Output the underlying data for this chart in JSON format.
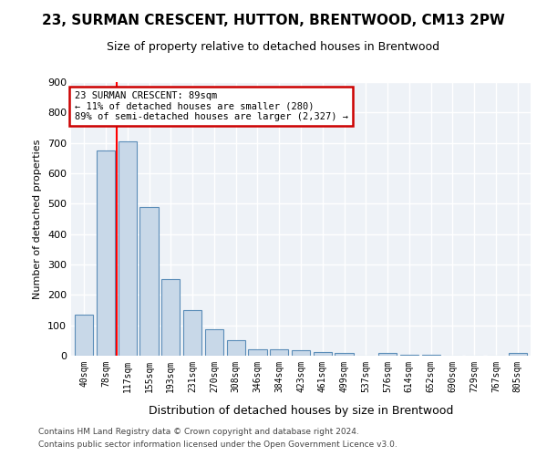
{
  "title": "23, SURMAN CRESCENT, HUTTON, BRENTWOOD, CM13 2PW",
  "subtitle": "Size of property relative to detached houses in Brentwood",
  "xlabel": "Distribution of detached houses by size in Brentwood",
  "ylabel": "Number of detached properties",
  "bar_color": "#c8d8e8",
  "bar_edge_color": "#5b8db8",
  "categories": [
    "40sqm",
    "78sqm",
    "117sqm",
    "155sqm",
    "193sqm",
    "231sqm",
    "270sqm",
    "308sqm",
    "346sqm",
    "384sqm",
    "423sqm",
    "461sqm",
    "499sqm",
    "537sqm",
    "576sqm",
    "614sqm",
    "652sqm",
    "690sqm",
    "729sqm",
    "767sqm",
    "805sqm"
  ],
  "values": [
    135,
    675,
    705,
    490,
    252,
    150,
    88,
    50,
    22,
    20,
    18,
    12,
    10,
    0,
    8,
    2,
    2,
    1,
    0,
    0,
    10
  ],
  "ylim": [
    0,
    900
  ],
  "yticks": [
    0,
    100,
    200,
    300,
    400,
    500,
    600,
    700,
    800,
    900
  ],
  "property_line_x": 1.5,
  "annotation_text": "23 SURMAN CRESCENT: 89sqm\n← 11% of detached houses are smaller (280)\n89% of semi-detached houses are larger (2,327) →",
  "annotation_box_color": "#cc0000",
  "footer1": "Contains HM Land Registry data © Crown copyright and database right 2024.",
  "footer2": "Contains public sector information licensed under the Open Government Licence v3.0.",
  "bg_color": "#eef2f7",
  "grid_color": "#ffffff",
  "title_fontsize": 11,
  "subtitle_fontsize": 9,
  "ylabel_fontsize": 8,
  "xlabel_fontsize": 9
}
